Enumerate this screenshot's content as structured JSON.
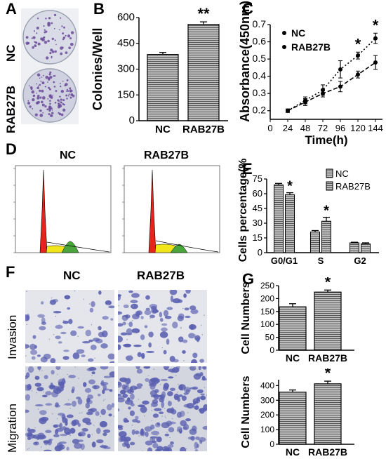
{
  "panel_labels": {
    "a": "A",
    "b": "B",
    "c": "C",
    "d": "D",
    "e": "E",
    "f": "F",
    "g": "G"
  },
  "panel_a": {
    "row_labels": [
      "NC",
      "RAB27B"
    ]
  },
  "panel_d": {
    "titles": [
      "NC",
      "RAB27B"
    ]
  },
  "panel_f": {
    "col_labels": [
      "NC",
      "RAB27B"
    ],
    "row_labels": [
      "Invasion",
      "Migration"
    ]
  },
  "colors": {
    "plate_stain": "#6b4a9a",
    "dish_stain": "#5a5fb0",
    "g1_peak": "#e8231c",
    "s_phase": "#f2e61a",
    "g2_peak": "#4aa63c",
    "bar_fill": "#8a8a8a"
  },
  "chart_data": [
    {
      "id": "B",
      "type": "bar",
      "categories": [
        "NC",
        "RAB27B"
      ],
      "values": [
        385,
        560
      ],
      "errors": [
        12,
        15
      ],
      "ylabel": "Colonies/Well",
      "yticks": [
        0,
        150,
        300,
        450,
        600
      ],
      "ylim": [
        0,
        600
      ],
      "annotations": [
        {
          "category": "RAB27B",
          "text": "**"
        }
      ]
    },
    {
      "id": "C",
      "type": "line",
      "x": [
        24,
        48,
        72,
        96,
        120,
        144
      ],
      "series": [
        {
          "name": "NC",
          "values": [
            0.2,
            0.26,
            0.32,
            0.44,
            0.52,
            0.62
          ],
          "errors": [
            0.01,
            0.02,
            0.03,
            0.05,
            0.02,
            0.03
          ]
        },
        {
          "name": "RAB27B",
          "values": [
            0.2,
            0.25,
            0.3,
            0.34,
            0.41,
            0.48
          ],
          "errors": [
            0.01,
            0.02,
            0.02,
            0.03,
            0.02,
            0.04
          ]
        }
      ],
      "xlabel": "Time(h)",
      "ylabel": "Absorbance(450nm)",
      "xticks": [
        0,
        24,
        48,
        72,
        96,
        120,
        144
      ],
      "yticks": [
        0.2,
        0.3,
        0.4,
        0.5,
        0.6,
        0.7
      ],
      "ylim": [
        0.15,
        0.7
      ],
      "annotations": [
        {
          "x": 120,
          "text": "*"
        },
        {
          "x": 144,
          "text": "*"
        }
      ]
    },
    {
      "id": "E",
      "type": "bar",
      "categories": [
        "G0/G1",
        "S",
        "G2"
      ],
      "series": [
        {
          "name": "NC",
          "values": [
            69,
            21,
            10
          ],
          "errors": [
            1.5,
            1.5,
            0.6
          ]
        },
        {
          "name": "RAB27B",
          "values": [
            59,
            32,
            9
          ],
          "errors": [
            2,
            4,
            1
          ]
        }
      ],
      "ylabel": "Cells percentage(%",
      "yticks": [
        0,
        15,
        30,
        45,
        60,
        75
      ],
      "ylim": [
        0,
        75
      ],
      "annotations": [
        {
          "category": "G0/G1",
          "text": "*"
        },
        {
          "category": "S",
          "text": "*"
        }
      ]
    },
    {
      "id": "G1",
      "type": "bar",
      "categories": [
        "NC",
        "RAB27B"
      ],
      "values": [
        168,
        225
      ],
      "errors": [
        12,
        8
      ],
      "ylabel": "Cell Numbers",
      "yticks": [
        0,
        50,
        100,
        150,
        200,
        250
      ],
      "ylim": [
        0,
        250
      ],
      "annotations": [
        {
          "category": "RAB27B",
          "text": "*"
        }
      ]
    },
    {
      "id": "G2",
      "type": "bar",
      "categories": [
        "NC",
        "RAB27B"
      ],
      "values": [
        355,
        412
      ],
      "errors": [
        15,
        18
      ],
      "ylabel": "Cell Numbers",
      "yticks": [
        0,
        100,
        200,
        300,
        400
      ],
      "ylim": [
        0,
        440
      ],
      "annotations": [
        {
          "category": "RAB27B",
          "text": "*"
        }
      ]
    }
  ]
}
